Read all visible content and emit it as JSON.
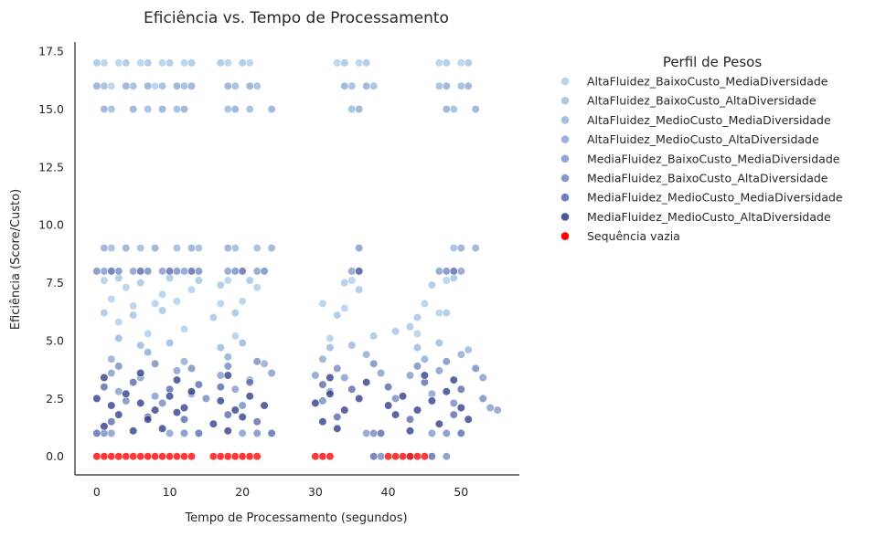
{
  "chart_data": {
    "type": "scatter",
    "title": "Eficiência vs. Tempo de Processamento",
    "xlabel": "Tempo de Processamento (segundos)",
    "ylabel": "Eficiência (Score/Custo)",
    "xlim": [
      -3,
      58
    ],
    "ylim": [
      -0.8,
      17.9
    ],
    "xticks": [
      0,
      10,
      20,
      30,
      40,
      50
    ],
    "xtick_labels": [
      "0",
      "10",
      "20",
      "30",
      "40",
      "50"
    ],
    "yticks": [
      0,
      2.5,
      5,
      7.5,
      10,
      12.5,
      15,
      17.5
    ],
    "ytick_labels": [
      "0.0",
      "2.5",
      "5.0",
      "7.5",
      "10.0",
      "12.5",
      "15.0",
      "17.5"
    ],
    "grid": false,
    "legend": {
      "title": "Perfil de Pesos",
      "placement": "outside-right"
    },
    "series": [
      {
        "name": "AltaFluidez_BaixoCusto_MediaDiversidade",
        "color": "#a9cce9",
        "points": [
          [
            1,
            17
          ],
          [
            3,
            17
          ],
          [
            6,
            17
          ],
          [
            9,
            17
          ],
          [
            12,
            17
          ],
          [
            18,
            17
          ],
          [
            21,
            17
          ],
          [
            33,
            17
          ],
          [
            36,
            17
          ],
          [
            47,
            17
          ],
          [
            50,
            17
          ],
          [
            2,
            16
          ],
          [
            8,
            16
          ],
          [
            2,
            6.8
          ],
          [
            5,
            6.5
          ],
          [
            8,
            6.6
          ],
          [
            11,
            6.7
          ],
          [
            17,
            6.6
          ],
          [
            20,
            6.7
          ],
          [
            31,
            6.6
          ],
          [
            34,
            6.4
          ],
          [
            45,
            6.6
          ],
          [
            1,
            7.6
          ],
          [
            4,
            7.3
          ],
          [
            9,
            7.0
          ],
          [
            13,
            7.2
          ],
          [
            18,
            7.6
          ],
          [
            22,
            7.3
          ],
          [
            35,
            7.6
          ],
          [
            48,
            7.6
          ],
          [
            3,
            5.8
          ],
          [
            7,
            5.3
          ],
          [
            12,
            5.5
          ],
          [
            19,
            5.2
          ],
          [
            32,
            5.1
          ],
          [
            44,
            5.3
          ],
          [
            47,
            6.2
          ]
        ]
      },
      {
        "name": "AltaFluidez_BaixoCusto_AltaDiversidade",
        "color": "#9dc1e3",
        "points": [
          [
            0,
            17
          ],
          [
            4,
            17
          ],
          [
            7,
            17
          ],
          [
            10,
            17
          ],
          [
            13,
            17
          ],
          [
            17,
            17
          ],
          [
            20,
            17
          ],
          [
            34,
            17
          ],
          [
            37,
            17
          ],
          [
            48,
            17
          ],
          [
            51,
            17
          ],
          [
            3,
            7.7
          ],
          [
            6,
            7.5
          ],
          [
            10,
            7.7
          ],
          [
            14,
            7.6
          ],
          [
            17,
            7.4
          ],
          [
            21,
            7.6
          ],
          [
            34,
            7.5
          ],
          [
            36,
            7.2
          ],
          [
            46,
            7.4
          ],
          [
            49,
            7.7
          ],
          [
            1,
            6.2
          ],
          [
            5,
            6.1
          ],
          [
            9,
            6.3
          ],
          [
            16,
            6.0
          ],
          [
            19,
            6.2
          ],
          [
            33,
            6.1
          ],
          [
            44,
            6.0
          ],
          [
            48,
            6.2
          ],
          [
            38,
            5.2
          ],
          [
            41,
            5.4
          ],
          [
            43,
            5.6
          ]
        ]
      },
      {
        "name": "AltaFluidez_MedioCusto_MediaDiversidade",
        "color": "#94b5dc",
        "points": [
          [
            1,
            16
          ],
          [
            5,
            16
          ],
          [
            9,
            16
          ],
          [
            12,
            16
          ],
          [
            19,
            16
          ],
          [
            22,
            16
          ],
          [
            35,
            16
          ],
          [
            38,
            16
          ],
          [
            47,
            16
          ],
          [
            50,
            16
          ],
          [
            2,
            15
          ],
          [
            7,
            15
          ],
          [
            11,
            15
          ],
          [
            18,
            15
          ],
          [
            21,
            15
          ],
          [
            35,
            15
          ],
          [
            49,
            15
          ],
          [
            2,
            9
          ],
          [
            6,
            9
          ],
          [
            11,
            9
          ],
          [
            14,
            9
          ],
          [
            19,
            9
          ],
          [
            22,
            9
          ],
          [
            36,
            9
          ],
          [
            49,
            9
          ],
          [
            3,
            5.1
          ],
          [
            6,
            4.8
          ],
          [
            10,
            4.9
          ],
          [
            17,
            4.7
          ],
          [
            20,
            4.9
          ],
          [
            32,
            4.7
          ],
          [
            35,
            4.8
          ],
          [
            44,
            4.7
          ],
          [
            47,
            4.9
          ],
          [
            51,
            4.6
          ]
        ]
      },
      {
        "name": "AltaFluidez_MedioCusto_AltaDiversidade",
        "color": "#89a6d3",
        "points": [
          [
            0,
            16
          ],
          [
            4,
            16
          ],
          [
            7,
            16
          ],
          [
            11,
            16
          ],
          [
            13,
            16
          ],
          [
            18,
            16
          ],
          [
            21,
            16
          ],
          [
            34,
            16
          ],
          [
            37,
            16
          ],
          [
            48,
            16
          ],
          [
            51,
            16
          ],
          [
            1,
            15
          ],
          [
            5,
            15
          ],
          [
            9,
            15
          ],
          [
            12,
            15
          ],
          [
            19,
            15
          ],
          [
            24,
            15
          ],
          [
            36,
            15
          ],
          [
            48,
            15
          ],
          [
            52,
            15
          ],
          [
            1,
            9
          ],
          [
            4,
            9
          ],
          [
            8,
            9
          ],
          [
            13,
            9
          ],
          [
            18,
            9
          ],
          [
            24,
            9
          ],
          [
            36,
            9
          ],
          [
            50,
            9
          ],
          [
            52,
            9
          ],
          [
            2,
            4.2
          ],
          [
            7,
            4.5
          ],
          [
            12,
            4.1
          ],
          [
            18,
            4.3
          ],
          [
            23,
            4.0
          ],
          [
            31,
            4.2
          ],
          [
            37,
            4.4
          ],
          [
            45,
            4.2
          ],
          [
            50,
            4.4
          ]
        ]
      },
      {
        "name": "MediaFluidez_BaixoCusto_MediaDiversidade",
        "color": "#7e97ca",
        "points": [
          [
            1,
            8
          ],
          [
            5,
            8
          ],
          [
            9,
            8
          ],
          [
            12,
            8
          ],
          [
            18,
            8
          ],
          [
            22,
            8
          ],
          [
            35,
            8
          ],
          [
            47,
            8
          ],
          [
            50,
            8
          ],
          [
            2,
            3.6
          ],
          [
            6,
            3.4
          ],
          [
            11,
            3.7
          ],
          [
            17,
            3.5
          ],
          [
            21,
            3.3
          ],
          [
            24,
            3.6
          ],
          [
            30,
            3.5
          ],
          [
            34,
            3.4
          ],
          [
            39,
            3.6
          ],
          [
            43,
            3.5
          ],
          [
            47,
            3.7
          ],
          [
            53,
            3.4
          ],
          [
            3,
            2.8
          ],
          [
            8,
            2.6
          ],
          [
            13,
            2.7
          ],
          [
            19,
            2.9
          ],
          [
            32,
            2.8
          ],
          [
            46,
            2.7
          ],
          [
            54,
            2.1
          ],
          [
            55,
            2.0
          ],
          [
            2,
            1
          ],
          [
            10,
            1
          ],
          [
            20,
            1
          ],
          [
            37,
            1
          ],
          [
            46,
            1
          ]
        ]
      },
      {
        "name": "MediaFluidez_BaixoCusto_AltaDiversidade",
        "color": "#6f86bf",
        "points": [
          [
            0,
            8
          ],
          [
            3,
            8
          ],
          [
            7,
            8
          ],
          [
            11,
            8
          ],
          [
            14,
            8
          ],
          [
            19,
            8
          ],
          [
            23,
            8
          ],
          [
            36,
            8
          ],
          [
            48,
            8
          ],
          [
            3,
            3.9
          ],
          [
            8,
            4.0
          ],
          [
            13,
            3.8
          ],
          [
            18,
            3.9
          ],
          [
            22,
            4.1
          ],
          [
            33,
            3.8
          ],
          [
            38,
            4.0
          ],
          [
            44,
            3.9
          ],
          [
            48,
            4.1
          ],
          [
            52,
            3.8
          ],
          [
            4,
            2.4
          ],
          [
            9,
            2.3
          ],
          [
            15,
            2.5
          ],
          [
            20,
            2.2
          ],
          [
            31,
            2.4
          ],
          [
            41,
            2.5
          ],
          [
            49,
            2.3
          ],
          [
            53,
            2.5
          ],
          [
            1,
            1
          ],
          [
            12,
            1
          ],
          [
            22,
            1
          ],
          [
            38,
            1
          ],
          [
            48,
            1
          ],
          [
            39,
            0
          ],
          [
            43,
            0
          ],
          [
            48,
            0
          ]
        ]
      },
      {
        "name": "MediaFluidez_MedioCusto_MediaDiversidade",
        "color": "#5667ab",
        "points": [
          [
            2,
            8
          ],
          [
            6,
            8
          ],
          [
            10,
            8
          ],
          [
            13,
            8
          ],
          [
            20,
            8
          ],
          [
            36,
            8
          ],
          [
            49,
            8
          ],
          [
            1,
            3.0
          ],
          [
            5,
            3.2
          ],
          [
            10,
            2.9
          ],
          [
            14,
            3.1
          ],
          [
            17,
            3.0
          ],
          [
            21,
            3.2
          ],
          [
            31,
            3.1
          ],
          [
            35,
            2.9
          ],
          [
            40,
            3.0
          ],
          [
            45,
            3.2
          ],
          [
            50,
            2.9
          ],
          [
            2,
            1.5
          ],
          [
            7,
            1.7
          ],
          [
            12,
            1.6
          ],
          [
            18,
            1.8
          ],
          [
            22,
            1.5
          ],
          [
            33,
            1.7
          ],
          [
            43,
            1.6
          ],
          [
            49,
            1.8
          ],
          [
            0,
            1
          ],
          [
            14,
            1
          ],
          [
            24,
            1
          ],
          [
            39,
            1
          ],
          [
            50,
            1
          ],
          [
            38,
            0
          ],
          [
            46,
            0
          ]
        ]
      },
      {
        "name": "MediaFluidez_MedioCusto_AltaDiversidade",
        "color": "#2d3a88",
        "points": [
          [
            0,
            2.5
          ],
          [
            2,
            2.2
          ],
          [
            4,
            2.7
          ],
          [
            6,
            2.3
          ],
          [
            8,
            2.0
          ],
          [
            10,
            2.6
          ],
          [
            12,
            2.1
          ],
          [
            13,
            2.8
          ],
          [
            17,
            2.4
          ],
          [
            19,
            2.0
          ],
          [
            21,
            2.6
          ],
          [
            23,
            2.2
          ],
          [
            30,
            2.3
          ],
          [
            32,
            2.7
          ],
          [
            34,
            2.0
          ],
          [
            36,
            2.5
          ],
          [
            40,
            2.2
          ],
          [
            42,
            2.6
          ],
          [
            44,
            2.0
          ],
          [
            46,
            2.4
          ],
          [
            48,
            2.8
          ],
          [
            50,
            2.1
          ],
          [
            1,
            1.3
          ],
          [
            3,
            1.8
          ],
          [
            5,
            1.1
          ],
          [
            7,
            1.6
          ],
          [
            9,
            1.2
          ],
          [
            11,
            1.9
          ],
          [
            16,
            1.4
          ],
          [
            18,
            1.1
          ],
          [
            20,
            1.7
          ],
          [
            31,
            1.5
          ],
          [
            33,
            1.2
          ],
          [
            41,
            1.8
          ],
          [
            43,
            1.1
          ],
          [
            47,
            1.4
          ],
          [
            51,
            1.6
          ],
          [
            1,
            3.4
          ],
          [
            6,
            3.6
          ],
          [
            11,
            3.3
          ],
          [
            18,
            3.5
          ],
          [
            32,
            3.4
          ],
          [
            37,
            3.2
          ],
          [
            45,
            3.5
          ],
          [
            49,
            3.3
          ]
        ]
      },
      {
        "name": "Sequência vazia",
        "color": "#ff0000",
        "points": [
          [
            0,
            0
          ],
          [
            1,
            0
          ],
          [
            2,
            0
          ],
          [
            3,
            0
          ],
          [
            4,
            0
          ],
          [
            5,
            0
          ],
          [
            6,
            0
          ],
          [
            7,
            0
          ],
          [
            8,
            0
          ],
          [
            9,
            0
          ],
          [
            10,
            0
          ],
          [
            11,
            0
          ],
          [
            12,
            0
          ],
          [
            13,
            0
          ],
          [
            16,
            0
          ],
          [
            17,
            0
          ],
          [
            18,
            0
          ],
          [
            19,
            0
          ],
          [
            20,
            0
          ],
          [
            21,
            0
          ],
          [
            22,
            0
          ],
          [
            30,
            0
          ],
          [
            31,
            0
          ],
          [
            32,
            0
          ],
          [
            40,
            0
          ],
          [
            41,
            0
          ],
          [
            42,
            0
          ],
          [
            43,
            0
          ],
          [
            44,
            0
          ],
          [
            45,
            0
          ]
        ]
      }
    ]
  }
}
